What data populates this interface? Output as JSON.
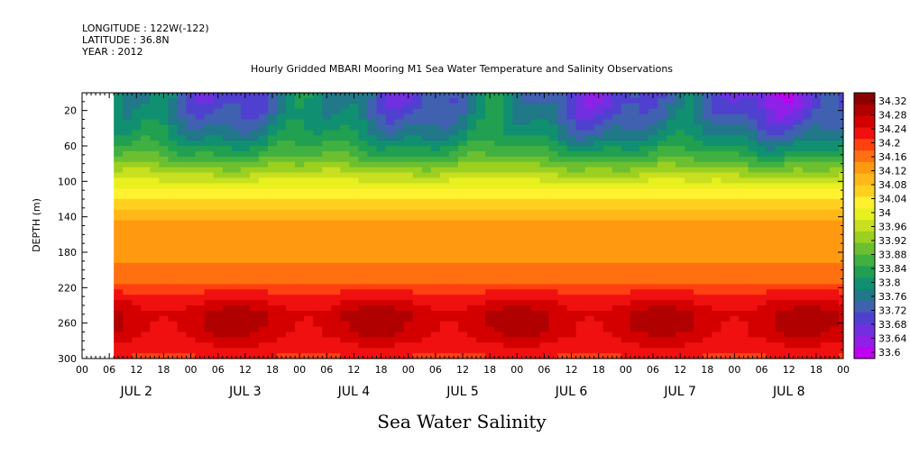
{
  "header": {
    "longitude": "LONGITUDE : 122W(-122)",
    "latitude": "LATITUDE : 36.8N",
    "year": "YEAR : 2012"
  },
  "chart_data": {
    "type": "heatmap",
    "title": "Hourly Gridded MBARI Mooring M1 Sea Water Temperature and Salinity Observations",
    "xlabel": "Sea Water Salinity",
    "ylabel": "DEPTH (m)",
    "x_range_hours": [
      0,
      168
    ],
    "data_start_hour": 7,
    "y_range": [
      0,
      300
    ],
    "y_inverted": true,
    "y_ticks": [
      20,
      60,
      100,
      140,
      180,
      220,
      260,
      300
    ],
    "hour_tick_labels": [
      "00",
      "06",
      "12",
      "18",
      "00",
      "06",
      "12",
      "18",
      "00",
      "06",
      "12",
      "18",
      "00",
      "06",
      "12",
      "18",
      "00",
      "06",
      "12",
      "18",
      "00",
      "06",
      "12",
      "18",
      "00",
      "06",
      "12",
      "18",
      "00"
    ],
    "day_labels": [
      "JUL 2",
      "JUL 3",
      "JUL 4",
      "JUL 5",
      "JUL 6",
      "JUL 7",
      "JUL 8"
    ],
    "colorbar": {
      "levels": [
        "34.32",
        "34.28",
        "34.24",
        "34.2",
        "34.16",
        "34.12",
        "34.08",
        "34.04",
        "34",
        "33.96",
        "33.92",
        "33.88",
        "33.84",
        "33.8",
        "33.76",
        "33.72",
        "33.68",
        "33.64",
        "33.6"
      ],
      "colors": [
        "#8b0000",
        "#b00000",
        "#d40000",
        "#f01010",
        "#ff4010",
        "#ff7010",
        "#ff9a10",
        "#ffb818",
        "#ffd020",
        "#fff030",
        "#e8f020",
        "#c8e020",
        "#9cd020",
        "#6cc030",
        "#40b040",
        "#20a050",
        "#109070",
        "#207888",
        "#4060b0",
        "#5040d0",
        "#7030e0",
        "#9020e8",
        "#c000f0"
      ]
    },
    "depth_profile": [
      {
        "depth": 10,
        "value": 33.74
      },
      {
        "depth": 30,
        "value": 33.76
      },
      {
        "depth": 50,
        "value": 33.8
      },
      {
        "depth": 70,
        "value": 33.86
      },
      {
        "depth": 90,
        "value": 33.94
      },
      {
        "depth": 110,
        "value": 34.02
      },
      {
        "depth": 130,
        "value": 34.07
      },
      {
        "depth": 150,
        "value": 34.12
      },
      {
        "depth": 170,
        "value": 34.13
      },
      {
        "depth": 190,
        "value": 34.14
      },
      {
        "depth": 210,
        "value": 34.16
      },
      {
        "depth": 230,
        "value": 34.22
      },
      {
        "depth": 250,
        "value": 34.27
      },
      {
        "depth": 270,
        "value": 34.26
      },
      {
        "depth": 290,
        "value": 34.22
      },
      {
        "depth": 300,
        "value": 34.2
      }
    ]
  }
}
